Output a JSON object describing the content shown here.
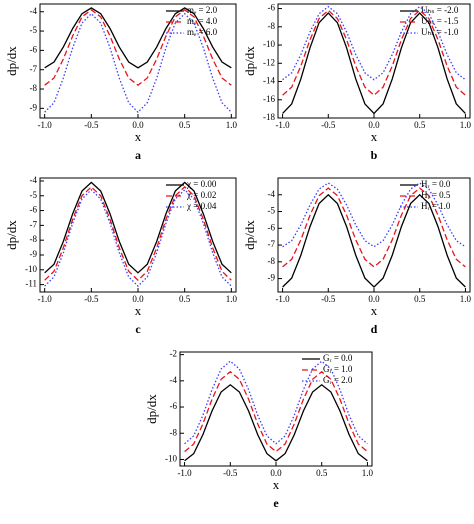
{
  "chart_data": [
    {
      "type": "line",
      "label": "a",
      "xlabel": "x",
      "ylabel": "dp/dx",
      "x": [
        -1,
        -0.9,
        -0.8,
        -0.7,
        -0.6,
        -0.5,
        -0.4,
        -0.3,
        -0.2,
        -0.1,
        0,
        0.1,
        0.2,
        0.3,
        0.4,
        0.5,
        0.6,
        0.7,
        0.8,
        0.9,
        1
      ],
      "xlim": [
        -1.05,
        1.05
      ],
      "xticks": [
        {
          "value": -1,
          "label": "-1.0"
        },
        {
          "value": -0.5,
          "label": "-0.5"
        },
        {
          "value": 0,
          "label": "0.0"
        },
        {
          "value": 0.5,
          "label": "0.5"
        },
        {
          "value": 1,
          "label": "1.0"
        }
      ],
      "ylim": [
        -9.5,
        -3.6
      ],
      "yticks": [
        -9,
        -8,
        -7,
        -6,
        -5,
        -4
      ],
      "series": [
        {
          "name": "mₑ = 2.0",
          "color": "#000000",
          "style": "solid",
          "values": [
            -6.9,
            -6.6,
            -5.83,
            -4.87,
            -4.1,
            -3.8,
            -4.1,
            -4.87,
            -5.83,
            -6.6,
            -6.9,
            -6.6,
            -5.83,
            -4.87,
            -4.1,
            -3.8,
            -4.1,
            -4.87,
            -5.83,
            -6.6,
            -6.9
          ]
        },
        {
          "name": "mₑ = 4.0",
          "color": "#e8141c",
          "style": "dashed",
          "values": [
            -7.8,
            -7.43,
            -6.45,
            -5.25,
            -4.27,
            -3.9,
            -4.27,
            -5.25,
            -6.45,
            -7.43,
            -7.8,
            -7.43,
            -6.45,
            -5.25,
            -4.27,
            -3.9,
            -4.27,
            -5.25,
            -6.45,
            -7.43,
            -7.8
          ]
        },
        {
          "name": "mₑ = 6.0",
          "color": "#3b3bff",
          "style": "dotted",
          "values": [
            -9.2,
            -8.71,
            -7.44,
            -5.86,
            -4.59,
            -4.1,
            -4.59,
            -5.86,
            -7.44,
            -8.71,
            -9.2,
            -8.71,
            -7.44,
            -5.86,
            -4.59,
            -4.1,
            -4.59,
            -5.86,
            -7.44,
            -8.71,
            -9.2
          ]
        }
      ]
    },
    {
      "type": "line",
      "label": "b",
      "xlabel": "x",
      "ylabel": "dp/dx",
      "x": [
        -1,
        -0.9,
        -0.8,
        -0.7,
        -0.6,
        -0.5,
        -0.4,
        -0.3,
        -0.2,
        -0.1,
        0,
        0.1,
        0.2,
        0.3,
        0.4,
        0.5,
        0.6,
        0.7,
        0.8,
        0.9,
        1
      ],
      "xlim": [
        -1.05,
        1.05
      ],
      "xticks": [
        {
          "value": -1,
          "label": "-1.0"
        },
        {
          "value": -0.5,
          "label": "-0.5"
        },
        {
          "value": 0,
          "label": "0.0"
        },
        {
          "value": 0.5,
          "label": "0.5"
        },
        {
          "value": 1,
          "label": "1.0"
        }
      ],
      "ylim": [
        -18,
        -5.5
      ],
      "yticks": [
        -18,
        -16,
        -14,
        -12,
        -10,
        -8,
        -6
      ],
      "series": [
        {
          "name": "Uₕₛ = -2.0",
          "color": "#000000",
          "style": "solid",
          "values": [
            -17.5,
            -16.45,
            -13.7,
            -10.3,
            -7.55,
            -6.5,
            -7.55,
            -10.3,
            -13.7,
            -16.45,
            -17.5,
            -16.45,
            -13.7,
            -10.3,
            -7.55,
            -6.5,
            -7.55,
            -10.3,
            -13.7,
            -16.45,
            -17.5
          ]
        },
        {
          "name": "Uₕₛ = -1.5",
          "color": "#e8141c",
          "style": "dashed",
          "values": [
            -15.5,
            -14.61,
            -12.29,
            -9.41,
            -7.09,
            -6.2,
            -7.09,
            -9.41,
            -12.29,
            -14.61,
            -15.5,
            -14.61,
            -12.29,
            -9.41,
            -7.09,
            -6.2,
            -7.09,
            -9.41,
            -12.29,
            -14.61,
            -15.5
          ]
        },
        {
          "name": "Uₕₛ = -1.0",
          "color": "#3b3bff",
          "style": "dotted",
          "values": [
            -13.8,
            -13.04,
            -11.04,
            -8.56,
            -6.56,
            -5.8,
            -6.56,
            -8.56,
            -11.04,
            -13.04,
            -13.8,
            -13.04,
            -11.04,
            -8.56,
            -6.56,
            -5.8,
            -6.56,
            -8.56,
            -11.04,
            -13.04,
            -13.8
          ]
        }
      ]
    },
    {
      "type": "line",
      "label": "c",
      "xlabel": "x",
      "ylabel": "dp/dx",
      "x": [
        -1,
        -0.9,
        -0.8,
        -0.7,
        -0.6,
        -0.5,
        -0.4,
        -0.3,
        -0.2,
        -0.1,
        0,
        0.1,
        0.2,
        0.3,
        0.4,
        0.5,
        0.6,
        0.7,
        0.8,
        0.9,
        1
      ],
      "xlim": [
        -1.05,
        1.05
      ],
      "xticks": [
        {
          "value": -1,
          "label": "-1.0"
        },
        {
          "value": -0.5,
          "label": "-0.5"
        },
        {
          "value": 0,
          "label": "0.0"
        },
        {
          "value": 0.5,
          "label": "0.5"
        },
        {
          "value": 1,
          "label": "1.0"
        }
      ],
      "ylim": [
        -11.5,
        -3.8
      ],
      "yticks": [
        -11,
        -10,
        -9,
        -8,
        -7,
        -6,
        -5,
        -4
      ],
      "series": [
        {
          "name": "χ = 0.00",
          "color": "#000000",
          "style": "solid",
          "values": [
            -10.2,
            -9.62,
            -8.09,
            -6.21,
            -4.68,
            -4.1,
            -4.68,
            -6.21,
            -8.09,
            -9.62,
            -10.2,
            -9.62,
            -8.09,
            -6.21,
            -4.68,
            -4.1,
            -4.68,
            -6.21,
            -8.09,
            -9.62,
            -10.2
          ]
        },
        {
          "name": "χ = 0.02",
          "color": "#e8141c",
          "style": "dashed",
          "values": [
            -10.7,
            -10.1,
            -8.52,
            -6.58,
            -5,
            -4.4,
            -5,
            -6.58,
            -8.52,
            -10.1,
            -10.7,
            -10.1,
            -8.52,
            -6.58,
            -5,
            -4.4,
            -5,
            -6.58,
            -8.52,
            -10.1,
            -10.7
          ]
        },
        {
          "name": "χ = 0.04",
          "color": "#3b3bff",
          "style": "dotted",
          "values": [
            -11.1,
            -10.48,
            -8.85,
            -6.85,
            -5.22,
            -4.6,
            -5.22,
            -6.85,
            -8.85,
            -10.48,
            -11.1,
            -10.48,
            -8.85,
            -6.85,
            -5.22,
            -4.6,
            -5.22,
            -6.85,
            -8.85,
            -10.48,
            -11.1
          ]
        }
      ]
    },
    {
      "type": "line",
      "label": "d",
      "xlabel": "x",
      "ylabel": "dp/dx",
      "x": [
        -1,
        -0.9,
        -0.8,
        -0.7,
        -0.6,
        -0.5,
        -0.4,
        -0.3,
        -0.2,
        -0.1,
        0,
        0.1,
        0.2,
        0.3,
        0.4,
        0.5,
        0.6,
        0.7,
        0.8,
        0.9,
        1
      ],
      "xlim": [
        -1.05,
        1.05
      ],
      "xticks": [
        {
          "value": -1,
          "label": "-1.0"
        },
        {
          "value": -0.5,
          "label": "-0.5"
        },
        {
          "value": 0,
          "label": "0.0"
        },
        {
          "value": 0.5,
          "label": "0.5"
        },
        {
          "value": 1,
          "label": "1.0"
        }
      ],
      "ylim": [
        -9.8,
        -3
      ],
      "yticks": [
        -9,
        -8,
        -7,
        -6,
        -5,
        -4
      ],
      "series": [
        {
          "name": "Hᵣ = 0.0",
          "color": "#000000",
          "style": "solid",
          "values": [
            -9.5,
            -8.97,
            -7.6,
            -5.9,
            -4.52,
            -4,
            -4.52,
            -5.9,
            -7.6,
            -8.97,
            -9.5,
            -8.97,
            -7.6,
            -5.9,
            -4.52,
            -4,
            -4.52,
            -5.9,
            -7.6,
            -8.97,
            -9.5
          ]
        },
        {
          "name": "Hᵣ = 0.5",
          "color": "#e8141c",
          "style": "dashed",
          "values": [
            -8.3,
            -7.85,
            -6.68,
            -5.22,
            -4.05,
            -3.6,
            -4.05,
            -5.22,
            -6.68,
            -7.85,
            -8.3,
            -7.85,
            -6.68,
            -5.22,
            -4.05,
            -3.6,
            -4.05,
            -5.22,
            -6.68,
            -7.85,
            -8.3
          ]
        },
        {
          "name": "Hᵣ = 1.0",
          "color": "#3b3bff",
          "style": "dotted",
          "values": [
            -7.1,
            -6.74,
            -5.79,
            -4.61,
            -3.66,
            -3.3,
            -3.66,
            -4.61,
            -5.79,
            -6.74,
            -7.1,
            -6.74,
            -5.79,
            -4.61,
            -3.66,
            -3.3,
            -3.66,
            -4.61,
            -5.79,
            -6.74,
            -7.1
          ]
        }
      ]
    },
    {
      "type": "line",
      "label": "e",
      "xlabel": "x",
      "ylabel": "dp/dx",
      "x": [
        -1,
        -0.9,
        -0.8,
        -0.7,
        -0.6,
        -0.5,
        -0.4,
        -0.3,
        -0.2,
        -0.1,
        0,
        0.1,
        0.2,
        0.3,
        0.4,
        0.5,
        0.6,
        0.7,
        0.8,
        0.9,
        1
      ],
      "xlim": [
        -1.05,
        1.05
      ],
      "xticks": [
        {
          "value": -1,
          "label": "-1.0"
        },
        {
          "value": -0.5,
          "label": "-0.5"
        },
        {
          "value": 0,
          "label": "0.0"
        },
        {
          "value": 0.5,
          "label": "0.5"
        },
        {
          "value": 1,
          "label": "1.0"
        }
      ],
      "ylim": [
        -10.5,
        -1.8
      ],
      "yticks": [
        -10,
        -8,
        -6,
        -4,
        -2
      ],
      "series": [
        {
          "name": "Gᵣ = 0.0",
          "color": "#000000",
          "style": "solid",
          "values": [
            -10.1,
            -9.55,
            -8.1,
            -6.3,
            -4.85,
            -4.3,
            -4.85,
            -6.3,
            -8.1,
            -9.55,
            -10.1,
            -9.55,
            -8.1,
            -6.3,
            -4.85,
            -4.3,
            -4.85,
            -6.3,
            -8.1,
            -9.55,
            -10.1
          ]
        },
        {
          "name": "Gᵣ = 1.0",
          "color": "#e8141c",
          "style": "dashed",
          "values": [
            -9.4,
            -8.82,
            -7.29,
            -5.41,
            -3.88,
            -3.3,
            -3.88,
            -5.41,
            -7.29,
            -8.82,
            -9.4,
            -8.82,
            -7.29,
            -5.41,
            -3.88,
            -3.3,
            -3.88,
            -5.41,
            -7.29,
            -8.82,
            -9.4
          ]
        },
        {
          "name": "Gᵣ = 2.0",
          "color": "#3b3bff",
          "style": "dotted",
          "values": [
            -8.8,
            -8.2,
            -6.62,
            -4.68,
            -3.1,
            -2.5,
            -3.1,
            -4.68,
            -6.62,
            -8.2,
            -8.8,
            -8.2,
            -6.62,
            -4.68,
            -3.1,
            -2.5,
            -3.1,
            -4.68,
            -6.62,
            -8.2,
            -8.8
          ]
        }
      ]
    }
  ]
}
